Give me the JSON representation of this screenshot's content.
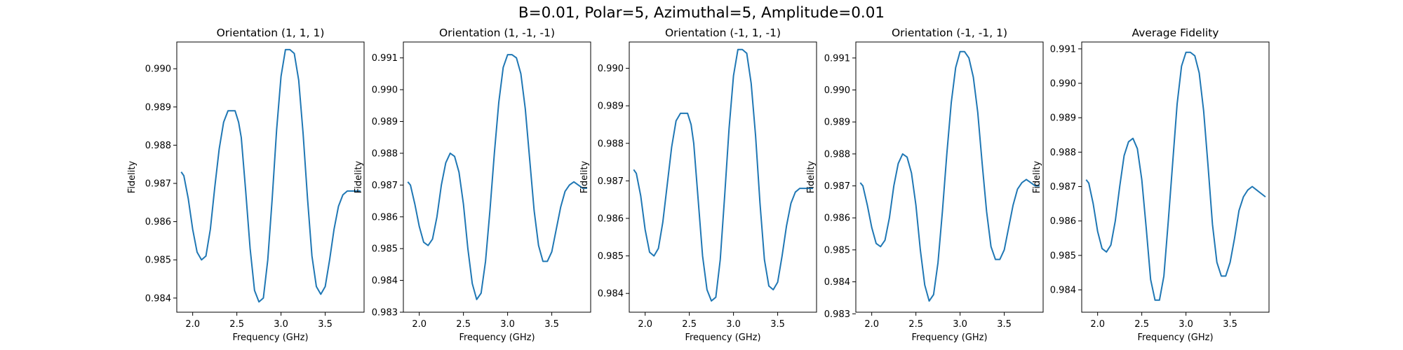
{
  "figure": {
    "title": "B=0.01, Polar=5, Azimuthal=5, Amplitude=0.01"
  },
  "colors": {
    "line": "#1f77b4",
    "axes": "#000000"
  },
  "chart_data": [
    {
      "type": "line",
      "title": "Orientation (1, 1, 1)",
      "xlabel": "Frequency (GHz)",
      "ylabel": "Fidelity",
      "xlim": [
        1.82,
        3.94
      ],
      "ylim": [
        0.98363,
        0.9907
      ],
      "xticks": [
        "2.0",
        "2.5",
        "3.0",
        "3.5"
      ],
      "yticks": [
        "0.984",
        "0.985",
        "0.986",
        "0.987",
        "0.988",
        "0.989",
        "0.990"
      ],
      "grid": false,
      "series": [
        {
          "x": [
            1.87,
            1.9,
            1.95,
            2.0,
            2.05,
            2.1,
            2.15,
            2.2,
            2.25,
            2.3,
            2.35,
            2.4,
            2.45,
            2.48,
            2.52,
            2.55,
            2.6,
            2.65,
            2.7,
            2.75,
            2.8,
            2.85,
            2.9,
            2.95,
            3.0,
            3.05,
            3.1,
            3.15,
            3.2,
            3.25,
            3.3,
            3.35,
            3.4,
            3.45,
            3.5,
            3.55,
            3.6,
            3.65,
            3.7,
            3.75,
            3.8,
            3.85,
            3.9
          ],
          "y": [
            0.9873,
            0.9872,
            0.9866,
            0.9858,
            0.9852,
            0.985,
            0.9851,
            0.9858,
            0.9869,
            0.9879,
            0.9886,
            0.9889,
            0.9889,
            0.9889,
            0.9886,
            0.9882,
            0.9868,
            0.9853,
            0.9842,
            0.9839,
            0.984,
            0.985,
            0.9866,
            0.9884,
            0.9898,
            0.9905,
            0.9905,
            0.9904,
            0.9897,
            0.9883,
            0.9866,
            0.9851,
            0.9843,
            0.9841,
            0.9843,
            0.985,
            0.9858,
            0.9864,
            0.9867,
            0.9868,
            0.9868,
            0.9868,
            0.9868
          ]
        }
      ]
    },
    {
      "type": "line",
      "title": "Orientation (1, -1, -1)",
      "xlabel": "Frequency (GHz)",
      "ylabel": "Fidelity",
      "xlim": [
        1.82,
        3.94
      ],
      "ylim": [
        0.983,
        0.9915
      ],
      "xticks": [
        "2.0",
        "2.5",
        "3.0",
        "3.5"
      ],
      "yticks": [
        "0.983",
        "0.984",
        "0.985",
        "0.986",
        "0.987",
        "0.988",
        "0.989",
        "0.990",
        "0.991"
      ],
      "grid": false,
      "series": [
        {
          "x": [
            1.87,
            1.9,
            1.95,
            2.0,
            2.05,
            2.1,
            2.15,
            2.2,
            2.25,
            2.3,
            2.35,
            2.4,
            2.45,
            2.5,
            2.55,
            2.6,
            2.65,
            2.7,
            2.75,
            2.8,
            2.85,
            2.9,
            2.95,
            3.0,
            3.05,
            3.1,
            3.15,
            3.2,
            3.25,
            3.3,
            3.35,
            3.4,
            3.45,
            3.5,
            3.55,
            3.6,
            3.65,
            3.7,
            3.75,
            3.8,
            3.85,
            3.9
          ],
          "y": [
            0.9871,
            0.987,
            0.9864,
            0.9857,
            0.9852,
            0.9851,
            0.9853,
            0.986,
            0.987,
            0.9877,
            0.988,
            0.9879,
            0.9874,
            0.9864,
            0.985,
            0.9839,
            0.9834,
            0.9836,
            0.9846,
            0.9862,
            0.988,
            0.9896,
            0.9907,
            0.9911,
            0.9911,
            0.991,
            0.9905,
            0.9894,
            0.9878,
            0.9862,
            0.9851,
            0.9846,
            0.9846,
            0.9849,
            0.9856,
            0.9863,
            0.9868,
            0.987,
            0.9871,
            0.987,
            0.9869,
            0.9869
          ]
        }
      ]
    },
    {
      "type": "line",
      "title": "Orientation (-1, 1, -1)",
      "xlabel": "Frequency (GHz)",
      "ylabel": "Fidelity",
      "xlim": [
        1.82,
        3.94
      ],
      "ylim": [
        0.9835,
        0.9907
      ],
      "xticks": [
        "2.0",
        "2.5",
        "3.0",
        "3.5"
      ],
      "yticks": [
        "0.984",
        "0.985",
        "0.986",
        "0.987",
        "0.988",
        "0.989",
        "0.990"
      ],
      "grid": false,
      "series": [
        {
          "x": [
            1.87,
            1.9,
            1.95,
            2.0,
            2.05,
            2.1,
            2.15,
            2.2,
            2.25,
            2.3,
            2.35,
            2.4,
            2.45,
            2.48,
            2.52,
            2.55,
            2.6,
            2.65,
            2.7,
            2.75,
            2.8,
            2.85,
            2.9,
            2.95,
            3.0,
            3.05,
            3.1,
            3.15,
            3.2,
            3.25,
            3.3,
            3.35,
            3.4,
            3.45,
            3.5,
            3.55,
            3.6,
            3.65,
            3.7,
            3.75,
            3.8,
            3.85,
            3.9
          ],
          "y": [
            0.9873,
            0.9872,
            0.9866,
            0.9857,
            0.9851,
            0.985,
            0.9852,
            0.9859,
            0.9869,
            0.9879,
            0.9886,
            0.9888,
            0.9888,
            0.9888,
            0.9885,
            0.988,
            0.9865,
            0.985,
            0.9841,
            0.9838,
            0.9839,
            0.9849,
            0.9866,
            0.9884,
            0.9898,
            0.9905,
            0.9905,
            0.9904,
            0.9896,
            0.9882,
            0.9864,
            0.9849,
            0.9842,
            0.9841,
            0.9843,
            0.985,
            0.9858,
            0.9864,
            0.9867,
            0.9868,
            0.9868,
            0.9868,
            0.9868
          ]
        }
      ]
    },
    {
      "type": "line",
      "title": "Orientation (-1, -1, 1)",
      "xlabel": "Frequency (GHz)",
      "ylabel": "Fidelity",
      "xlim": [
        1.82,
        3.94
      ],
      "ylim": [
        0.98305,
        0.9915
      ],
      "xticks": [
        "2.0",
        "2.5",
        "3.0",
        "3.5"
      ],
      "yticks": [
        "0.983",
        "0.984",
        "0.985",
        "0.986",
        "0.987",
        "0.988",
        "0.989",
        "0.990",
        "0.991"
      ],
      "grid": false,
      "series": [
        {
          "x": [
            1.87,
            1.9,
            1.95,
            2.0,
            2.05,
            2.1,
            2.15,
            2.2,
            2.25,
            2.3,
            2.35,
            2.4,
            2.45,
            2.5,
            2.55,
            2.6,
            2.65,
            2.7,
            2.75,
            2.8,
            2.85,
            2.9,
            2.95,
            3.0,
            3.05,
            3.1,
            3.15,
            3.2,
            3.25,
            3.3,
            3.35,
            3.4,
            3.45,
            3.5,
            3.55,
            3.6,
            3.65,
            3.7,
            3.75,
            3.8,
            3.85,
            3.9
          ],
          "y": [
            0.9871,
            0.987,
            0.9864,
            0.9857,
            0.9852,
            0.9851,
            0.9853,
            0.986,
            0.987,
            0.9877,
            0.988,
            0.9879,
            0.9874,
            0.9864,
            0.985,
            0.9839,
            0.9834,
            0.9836,
            0.9846,
            0.9862,
            0.988,
            0.9896,
            0.9907,
            0.9912,
            0.9912,
            0.991,
            0.9904,
            0.9893,
            0.9877,
            0.9862,
            0.9851,
            0.9847,
            0.9847,
            0.985,
            0.9857,
            0.9864,
            0.9869,
            0.9871,
            0.9872,
            0.9871,
            0.987,
            0.987
          ]
        }
      ]
    },
    {
      "type": "line",
      "title": "Average Fidelity",
      "xlabel": "Frequency (GHz)",
      "ylabel": "Fidelity",
      "xlim": [
        1.82,
        3.94
      ],
      "ylim": [
        0.98335,
        0.9912
      ],
      "xticks": [
        "2.0",
        "2.5",
        "3.0",
        "3.5"
      ],
      "yticks": [
        "0.984",
        "0.985",
        "0.986",
        "0.987",
        "0.988",
        "0.989",
        "0.990",
        "0.991"
      ],
      "grid": false,
      "series": [
        {
          "x": [
            1.87,
            1.9,
            1.95,
            2.0,
            2.05,
            2.1,
            2.15,
            2.2,
            2.25,
            2.3,
            2.35,
            2.4,
            2.45,
            2.5,
            2.55,
            2.6,
            2.65,
            2.7,
            2.75,
            2.8,
            2.85,
            2.9,
            2.95,
            3.0,
            3.05,
            3.1,
            3.15,
            3.2,
            3.25,
            3.3,
            3.35,
            3.4,
            3.45,
            3.5,
            3.55,
            3.6,
            3.65,
            3.7,
            3.75,
            3.8,
            3.85,
            3.9
          ],
          "y": [
            0.9872,
            0.9871,
            0.9865,
            0.9857,
            0.9852,
            0.9851,
            0.9853,
            0.986,
            0.987,
            0.9879,
            0.9883,
            0.9884,
            0.9881,
            0.9872,
            0.9858,
            0.9843,
            0.9837,
            0.9837,
            0.9844,
            0.986,
            0.9877,
            0.9894,
            0.9905,
            0.9909,
            0.9909,
            0.9908,
            0.9903,
            0.9892,
            0.9876,
            0.9859,
            0.9848,
            0.9844,
            0.9844,
            0.9848,
            0.9855,
            0.9863,
            0.9867,
            0.9869,
            0.987,
            0.9869,
            0.9868,
            0.9867
          ]
        }
      ]
    }
  ]
}
